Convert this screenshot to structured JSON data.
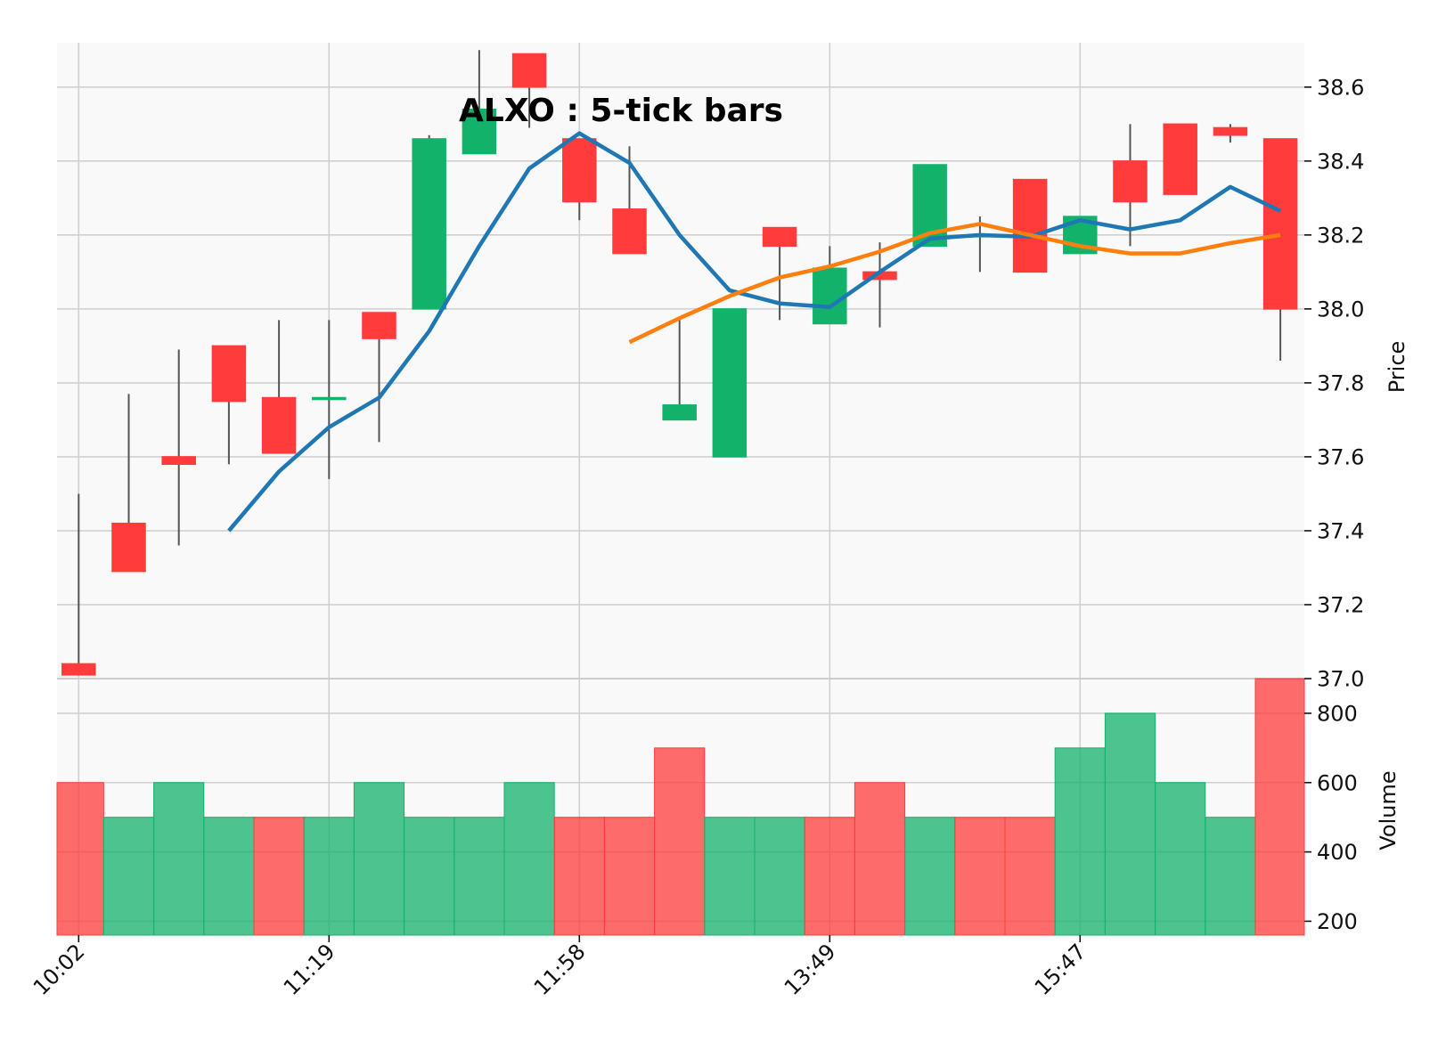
{
  "chart_data": {
    "type": "candlestick",
    "title": "ALXO : 5-tick bars",
    "price_axis": {
      "label": "Price",
      "ylim": [
        37.0,
        38.72
      ],
      "ticks": [
        "37.0",
        "37.2",
        "37.4",
        "37.6",
        "37.8",
        "38.0",
        "38.2",
        "38.4",
        "38.6"
      ]
    },
    "volume_axis": {
      "label": "Volume",
      "ylim": [
        160,
        900
      ],
      "ticks": [
        "200",
        "400",
        "600",
        "800"
      ]
    },
    "x_tick_labels": [
      {
        "index": 0,
        "label": "10:02"
      },
      {
        "index": 5,
        "label": "11:19"
      },
      {
        "index": 10,
        "label": "11:58"
      },
      {
        "index": 15,
        "label": "13:49"
      },
      {
        "index": 20,
        "label": "15:47"
      }
    ],
    "grid": true,
    "colors": {
      "up": "#13b26b",
      "down": "#ff3b3b",
      "sma_fast": "#1f77b4",
      "sma_slow": "#ff7f0e",
      "grid": "#d0d0d0",
      "panel_bg": "#f9f9f9",
      "wick": "#555555"
    },
    "candles": [
      {
        "open": 37.04,
        "high": 37.5,
        "low": 37.01,
        "close": 37.01
      },
      {
        "open": 37.42,
        "high": 37.77,
        "low": 37.29,
        "close": 37.29
      },
      {
        "open": 37.6,
        "high": 37.89,
        "low": 37.36,
        "close": 37.58
      },
      {
        "open": 37.9,
        "high": 37.9,
        "low": 37.58,
        "close": 37.75
      },
      {
        "open": 37.76,
        "high": 37.97,
        "low": 37.61,
        "close": 37.61
      },
      {
        "open": 37.76,
        "high": 37.97,
        "low": 37.54,
        "close": 37.76
      },
      {
        "open": 37.99,
        "high": 37.99,
        "low": 37.64,
        "close": 37.92
      },
      {
        "open": 38.0,
        "high": 38.47,
        "low": 38.0,
        "close": 38.46
      },
      {
        "open": 38.42,
        "high": 38.7,
        "low": 38.42,
        "close": 38.54
      },
      {
        "open": 38.69,
        "high": 38.69,
        "low": 38.49,
        "close": 38.6
      },
      {
        "open": 38.46,
        "high": 38.46,
        "low": 38.24,
        "close": 38.29
      },
      {
        "open": 38.27,
        "high": 38.44,
        "low": 38.15,
        "close": 38.15
      },
      {
        "open": 37.7,
        "high": 37.97,
        "low": 37.7,
        "close": 37.74
      },
      {
        "open": 37.6,
        "high": 38.0,
        "low": 37.6,
        "close": 38.0
      },
      {
        "open": 38.22,
        "high": 38.22,
        "low": 37.97,
        "close": 38.17
      },
      {
        "open": 37.96,
        "high": 38.17,
        "low": 37.96,
        "close": 38.11
      },
      {
        "open": 38.1,
        "high": 38.18,
        "low": 37.95,
        "close": 38.08
      },
      {
        "open": 38.17,
        "high": 38.39,
        "low": 38.17,
        "close": 38.39
      },
      {
        "open": 38.2,
        "high": 38.25,
        "low": 38.1,
        "close": 38.2
      },
      {
        "open": 38.35,
        "high": 38.35,
        "low": 38.1,
        "close": 38.1
      },
      {
        "open": 38.15,
        "high": 38.25,
        "low": 38.15,
        "close": 38.25
      },
      {
        "open": 38.4,
        "high": 38.5,
        "low": 38.17,
        "close": 38.29
      },
      {
        "open": 38.5,
        "high": 38.5,
        "low": 38.31,
        "close": 38.31
      },
      {
        "open": 38.49,
        "high": 38.5,
        "low": 38.45,
        "close": 38.47
      },
      {
        "open": 38.46,
        "high": 38.46,
        "low": 37.86,
        "close": 38.0
      }
    ],
    "volume": [
      600,
      500,
      600,
      500,
      500,
      500,
      600,
      500,
      500,
      600,
      500,
      500,
      700,
      500,
      500,
      500,
      600,
      500,
      500,
      500,
      700,
      800,
      600,
      500,
      900
    ],
    "volume_direction": [
      "down",
      "up",
      "up",
      "up",
      "down",
      "up",
      "up",
      "up",
      "up",
      "up",
      "down",
      "down",
      "down",
      "up",
      "up",
      "down",
      "down",
      "up",
      "down",
      "down",
      "up",
      "up",
      "up",
      "up",
      "down"
    ],
    "sma_fast": [
      null,
      null,
      null,
      37.4,
      37.56,
      37.68,
      37.76,
      37.94,
      38.17,
      38.38,
      38.475,
      38.395,
      38.2,
      38.05,
      38.015,
      38.005,
      38.1,
      38.19,
      38.2,
      38.195,
      38.24,
      38.215,
      38.24,
      38.33,
      38.265
    ],
    "sma_slow": [
      null,
      null,
      null,
      null,
      null,
      null,
      null,
      null,
      null,
      null,
      null,
      37.91,
      37.975,
      38.035,
      38.085,
      38.115,
      38.155,
      38.205,
      38.23,
      38.2,
      38.17,
      38.15,
      38.15,
      38.178,
      38.2
    ]
  }
}
